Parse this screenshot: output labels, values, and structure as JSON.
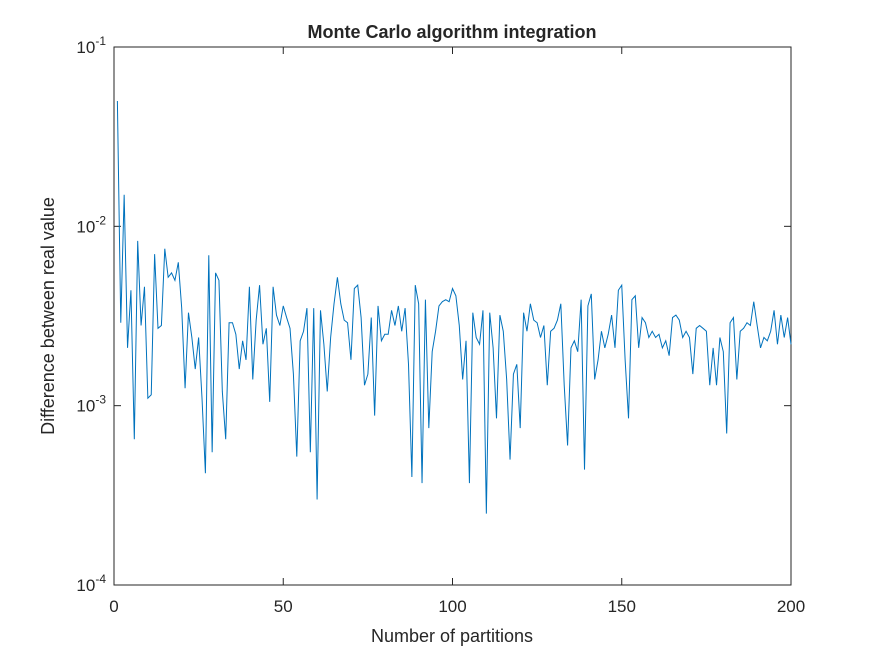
{
  "chart_data": {
    "type": "line",
    "title": "Monte Carlo algorithm integration",
    "x_label": "Number of partitions",
    "y_label": "Difference between real value",
    "log_y": true,
    "grid": false,
    "xlim": [
      0,
      200
    ],
    "xticks": [
      0,
      50,
      100,
      150,
      200
    ],
    "ylim": [
      0.0001,
      0.1
    ],
    "yticks": [
      {
        "value": 0.0001,
        "label": "10",
        "exponent": "-4"
      },
      {
        "value": 0.001,
        "label": "10",
        "exponent": "-3"
      },
      {
        "value": 0.01,
        "label": "10",
        "exponent": "-2"
      },
      {
        "value": 0.1,
        "label": "10",
        "exponent": "-1"
      }
    ],
    "series": [
      {
        "color": "#0072bd",
        "x": [
          1,
          2,
          3,
          4,
          5,
          6,
          7,
          8,
          9,
          10,
          11,
          12,
          13,
          14,
          15,
          16,
          17,
          18,
          19,
          20,
          21,
          22,
          23,
          24,
          25,
          26,
          27,
          28,
          29,
          30,
          31,
          32,
          33,
          34,
          35,
          36,
          37,
          38,
          39,
          40,
          41,
          42,
          43,
          44,
          45,
          46,
          47,
          48,
          49,
          50,
          51,
          52,
          53,
          54,
          55,
          56,
          57,
          58,
          59,
          60,
          61,
          62,
          63,
          64,
          65,
          66,
          67,
          68,
          69,
          70,
          71,
          72,
          73,
          74,
          75,
          76,
          77,
          78,
          79,
          80,
          81,
          82,
          83,
          84,
          85,
          86,
          87,
          88,
          89,
          90,
          91,
          92,
          93,
          94,
          95,
          96,
          97,
          98,
          99,
          100,
          101,
          102,
          103,
          104,
          105,
          106,
          107,
          108,
          109,
          110,
          111,
          112,
          113,
          114,
          115,
          116,
          117,
          118,
          119,
          120,
          121,
          122,
          123,
          124,
          125,
          126,
          127,
          128,
          129,
          130,
          131,
          132,
          133,
          134,
          135,
          136,
          137,
          138,
          139,
          140,
          141,
          142,
          143,
          144,
          145,
          146,
          147,
          148,
          149,
          150,
          151,
          152,
          153,
          154,
          155,
          156,
          157,
          158,
          159,
          160,
          161,
          162,
          163,
          164,
          165,
          166,
          167,
          168,
          169,
          170,
          171,
          172,
          173,
          174,
          175,
          176,
          177,
          178,
          179,
          180,
          181,
          182,
          183,
          184,
          185,
          186,
          187,
          188,
          189,
          190,
          191,
          192,
          193,
          194,
          195,
          196,
          197,
          198,
          199,
          200
        ],
        "values": [
          0.05,
          0.0029,
          0.015,
          0.0021,
          0.0044,
          0.00065,
          0.0083,
          0.0028,
          0.0046,
          0.0011,
          0.00115,
          0.007,
          0.0027,
          0.0028,
          0.0075,
          0.0052,
          0.0055,
          0.005,
          0.0063,
          0.0035,
          0.00125,
          0.0033,
          0.0024,
          0.0016,
          0.0024,
          0.0011,
          0.00042,
          0.0069,
          0.00055,
          0.0055,
          0.005,
          0.0012,
          0.00065,
          0.0029,
          0.0029,
          0.0025,
          0.0016,
          0.0023,
          0.0018,
          0.0046,
          0.0014,
          0.003,
          0.0047,
          0.0022,
          0.0027,
          0.00105,
          0.0046,
          0.0032,
          0.0028,
          0.0036,
          0.0031,
          0.0027,
          0.0015,
          0.00052,
          0.0023,
          0.0026,
          0.0035,
          0.00055,
          0.0035,
          0.0003,
          0.0034,
          0.0022,
          0.0012,
          0.0024,
          0.0037,
          0.0052,
          0.0037,
          0.003,
          0.0029,
          0.0018,
          0.0045,
          0.0047,
          0.0031,
          0.0013,
          0.0015,
          0.0031,
          0.00088,
          0.0036,
          0.0023,
          0.0025,
          0.0025,
          0.0034,
          0.0028,
          0.0036,
          0.0026,
          0.0035,
          0.0017,
          0.0004,
          0.0047,
          0.0037,
          0.00037,
          0.0039,
          0.00075,
          0.002,
          0.0026,
          0.0036,
          0.0038,
          0.0039,
          0.0038,
          0.0045,
          0.0041,
          0.0028,
          0.0014,
          0.0023,
          0.00037,
          0.0033,
          0.0024,
          0.0022,
          0.0034,
          0.00025,
          0.0033,
          0.0021,
          0.00085,
          0.0032,
          0.0026,
          0.0014,
          0.0005,
          0.0015,
          0.0017,
          0.00075,
          0.0033,
          0.0026,
          0.0037,
          0.003,
          0.0029,
          0.0024,
          0.0028,
          0.0013,
          0.0026,
          0.0027,
          0.003,
          0.0037,
          0.0013,
          0.0006,
          0.0021,
          0.0023,
          0.002,
          0.0039,
          0.00044,
          0.0036,
          0.0042,
          0.0014,
          0.0018,
          0.0026,
          0.0021,
          0.0025,
          0.0032,
          0.0021,
          0.0044,
          0.0047,
          0.0018,
          0.00085,
          0.0039,
          0.0041,
          0.0021,
          0.0031,
          0.0029,
          0.0024,
          0.0026,
          0.0024,
          0.0025,
          0.0021,
          0.0023,
          0.0019,
          0.0031,
          0.0032,
          0.003,
          0.0024,
          0.0026,
          0.0024,
          0.0015,
          0.0027,
          0.0028,
          0.0027,
          0.0026,
          0.0013,
          0.0021,
          0.0013,
          0.0024,
          0.002,
          0.0007,
          0.0029,
          0.0031,
          0.0014,
          0.0026,
          0.0027,
          0.0029,
          0.0028,
          0.0038,
          0.0028,
          0.0021,
          0.0024,
          0.0023,
          0.0026,
          0.0034,
          0.0022,
          0.0032,
          0.0024,
          0.0031,
          0.0022
        ]
      }
    ]
  }
}
